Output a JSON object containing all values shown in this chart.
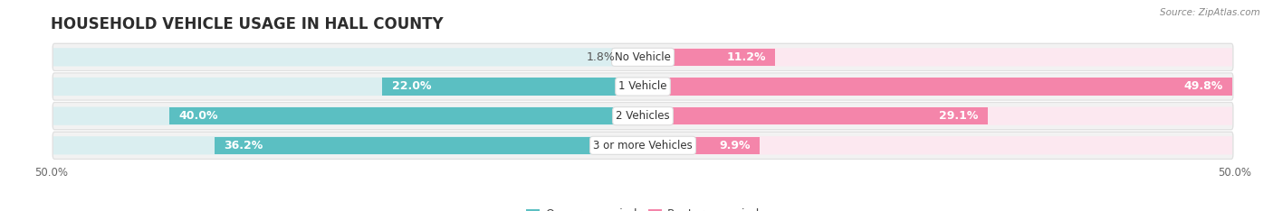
{
  "title": "HOUSEHOLD VEHICLE USAGE IN HALL COUNTY",
  "source": "Source: ZipAtlas.com",
  "categories": [
    "No Vehicle",
    "1 Vehicle",
    "2 Vehicles",
    "3 or more Vehicles"
  ],
  "owner_values": [
    1.8,
    22.0,
    40.0,
    36.2
  ],
  "renter_values": [
    11.2,
    49.8,
    29.1,
    9.9
  ],
  "owner_color": "#5bbfc2",
  "renter_color": "#f485aa",
  "owner_light": "#daeef0",
  "renter_light": "#fce8f0",
  "row_bg": "#f2f2f2",
  "bar_height": 0.62,
  "xlim": 50.0,
  "title_fontsize": 12,
  "label_fontsize": 9,
  "tick_fontsize": 8.5,
  "legend_fontsize": 9,
  "category_fontsize": 8.5,
  "value_color_inside": "white",
  "value_color_outside": "#555555"
}
